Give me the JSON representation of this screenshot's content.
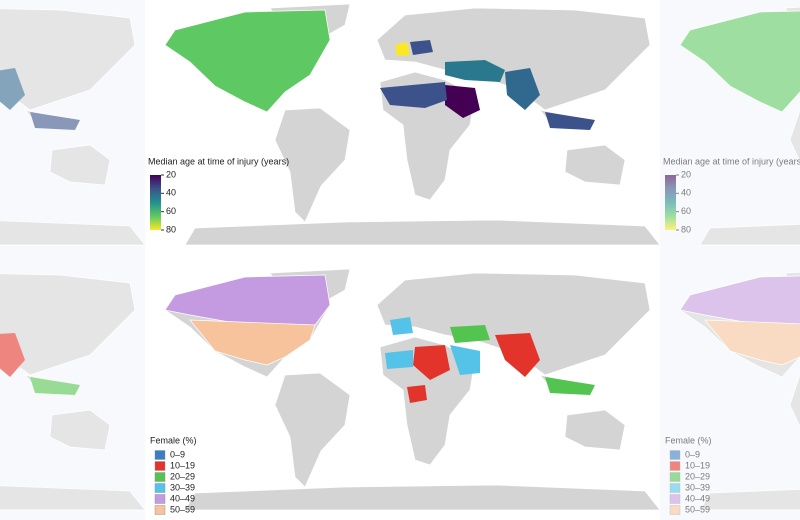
{
  "maps": [
    {
      "legend": {
        "title": "Median age at time of injury (years)",
        "ticks": [
          20,
          40,
          60,
          80
        ]
      }
    },
    {
      "legend": {
        "title": "Female (%)",
        "items": [
          {
            "label": "0–9",
            "color": "#3a7fc1"
          },
          {
            "label": "10–19",
            "color": "#e3342b"
          },
          {
            "label": "20–29",
            "color": "#52c44f"
          },
          {
            "label": "30–39",
            "color": "#55c3e8"
          },
          {
            "label": "40–49",
            "color": "#c49be0"
          },
          {
            "label": "50–59",
            "color": "#f6c39c"
          }
        ]
      }
    }
  ]
}
